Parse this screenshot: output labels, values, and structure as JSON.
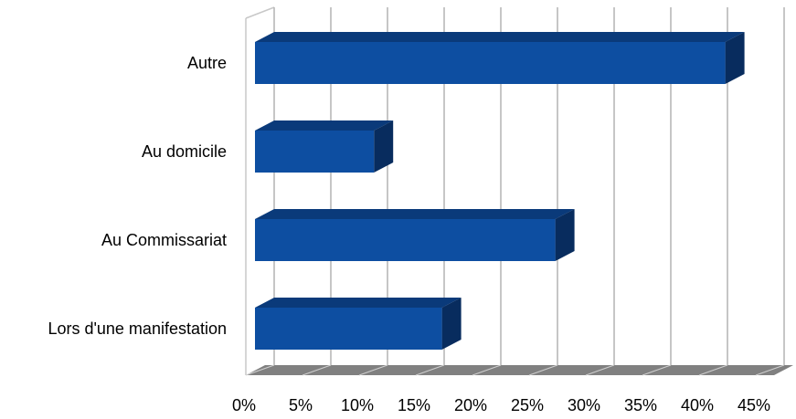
{
  "chart_data": {
    "type": "bar",
    "orientation": "horizontal",
    "three_d": true,
    "categories": [
      "Autre",
      "Au domicile",
      "Au Commissariat ",
      "Lors d'une manifestation"
    ],
    "values": [
      41.5,
      10.5,
      26.5,
      16.5
    ],
    "unit": "%",
    "xlim": [
      0,
      45
    ],
    "x_ticks": [
      "0%",
      "5%",
      "10%",
      "15%",
      "20%",
      "25%",
      "30%",
      "35%",
      "40%",
      "45%"
    ],
    "grid": true,
    "legend": "none",
    "colors": {
      "bar_front": "#0d4ea1",
      "bar_top": "#0a3a7a",
      "bar_side": "#082c5e",
      "floor": "#808080",
      "grid": "#b3b3b3",
      "wall_edge": "#c8c8c8"
    }
  }
}
